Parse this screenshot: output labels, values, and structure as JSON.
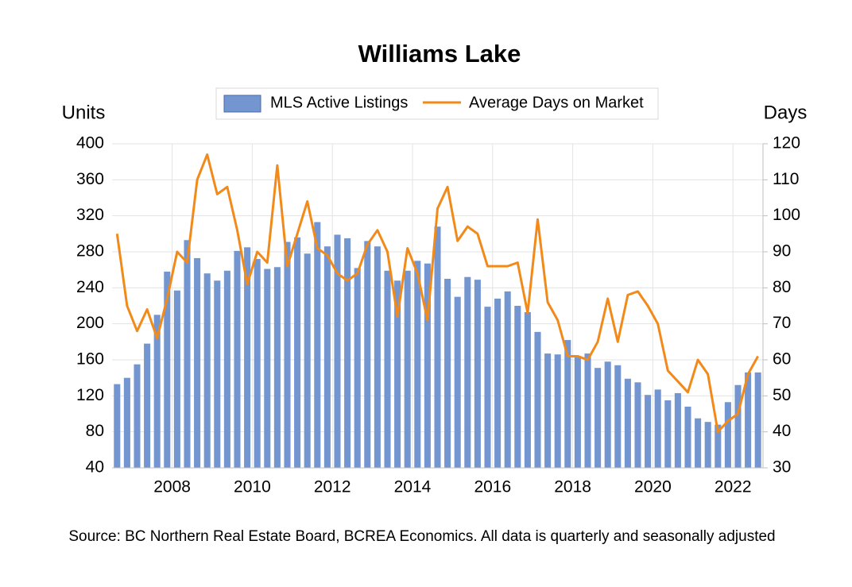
{
  "chart_data": {
    "type": "bar-line",
    "title": "Williams Lake",
    "y_label": "Units",
    "y2_label": "Days",
    "source": "Source: BC Northern Real Estate Board, BCREA Economics. All data is quarterly and seasonally adjusted",
    "categories": [
      null,
      null,
      null,
      null,
      null,
      null,
      "2008",
      null,
      null,
      null,
      null,
      null,
      null,
      null,
      "2010",
      null,
      null,
      null,
      null,
      null,
      null,
      null,
      "2012",
      null,
      null,
      null,
      null,
      null,
      null,
      null,
      "2014",
      null,
      null,
      null,
      null,
      null,
      null,
      null,
      "2016",
      null,
      null,
      null,
      null,
      null,
      null,
      null,
      "2018",
      null,
      null,
      null,
      null,
      null,
      null,
      null,
      "2020",
      null,
      null,
      null,
      null,
      null,
      null,
      null,
      "2022",
      null,
      null
    ],
    "series": [
      {
        "name": "MLS Active Listings",
        "type": "bar",
        "color": "#7496d0",
        "values": [
          133,
          140,
          155,
          178,
          210,
          258,
          237,
          293,
          273,
          256,
          248,
          259,
          281,
          285,
          272,
          261,
          263,
          291,
          296,
          278,
          313,
          286,
          299,
          295,
          262,
          292,
          286,
          259,
          248,
          259,
          270,
          267,
          308,
          250,
          230,
          252,
          249,
          219,
          228,
          236,
          220,
          213,
          191,
          167,
          166,
          182,
          164,
          167,
          151,
          158,
          154,
          139,
          135,
          121,
          127,
          115,
          123,
          108,
          95,
          91,
          88,
          113,
          132,
          146,
          146
        ]
      },
      {
        "name": "Average Days on Market",
        "type": "line",
        "axis": "y2",
        "color": "#f28a1a",
        "values": [
          95,
          75,
          68,
          74,
          66,
          77,
          90,
          87,
          110,
          117,
          106,
          108,
          96,
          81,
          90,
          87,
          114,
          86,
          95,
          104,
          91,
          89,
          84,
          82,
          84,
          92,
          96,
          90,
          72,
          91,
          84,
          71,
          102,
          108,
          93,
          97,
          95,
          86,
          86,
          86,
          87,
          73,
          99,
          76,
          71,
          61,
          61,
          60,
          65,
          77,
          65,
          78,
          79,
          75,
          70,
          57,
          54,
          51,
          60,
          56,
          40,
          43,
          45,
          56,
          61
        ]
      }
    ],
    "ylim": [
      40,
      400
    ],
    "yticks": [
      40,
      80,
      120,
      160,
      200,
      240,
      280,
      320,
      360,
      400
    ],
    "y2lim": [
      30,
      120
    ],
    "y2ticks": [
      30,
      40,
      50,
      60,
      70,
      80,
      90,
      100,
      110,
      120
    ],
    "grid": true,
    "legend": "top"
  }
}
